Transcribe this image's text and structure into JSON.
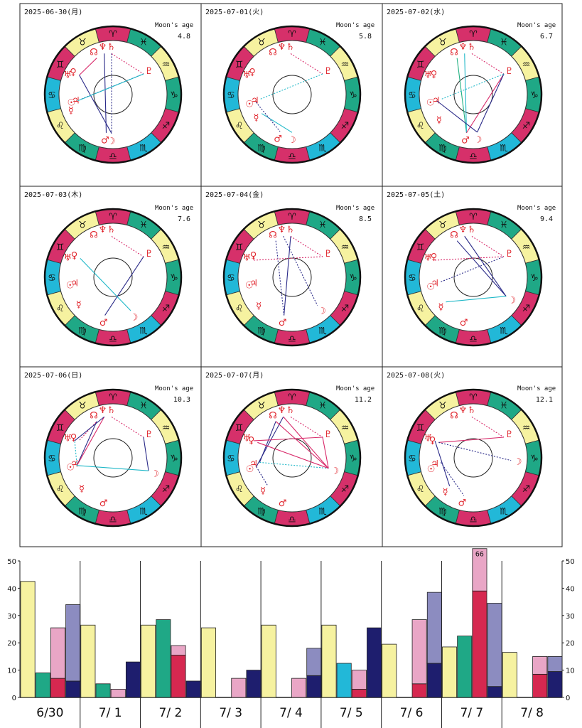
{
  "colors": {
    "yellow": "#f6f2a0",
    "teal": "#1fa886",
    "cyan": "#22b8d8",
    "magenta": "#d6306a",
    "planet_red": "#e0242c",
    "pink_light": "#e9a6c6",
    "crimson": "#d62850",
    "lavender": "#8c8cc0",
    "navy": "#1e1e6e",
    "aspect_blue": "#2a2a88",
    "aspect_pink": "#d82a6a",
    "aspect_cyan": "#20b8c8",
    "aspect_green": "#20b080"
  },
  "zodiac_glyphs": [
    "♈",
    "♉",
    "♊",
    "♋",
    "♌",
    "♍",
    "♎",
    "♏",
    "♐",
    "♑",
    "♒",
    "♓"
  ],
  "planet_glyphs": {
    "moon": "☽",
    "mercury": "☿",
    "venus": "♀",
    "mars": "♂",
    "jupiter": "♃",
    "saturn": "♄",
    "uranus": "♅",
    "neptune": "♆",
    "pluto": "♇",
    "sun": "☉",
    "node": "☊"
  },
  "moon_age_label": "Moon's age",
  "charts": [
    {
      "date": "2025-06-30(月)",
      "moon_age": "4.8"
    },
    {
      "date": "2025-07-01(火)",
      "moon_age": "5.8"
    },
    {
      "date": "2025-07-02(水)",
      "moon_age": "6.7"
    },
    {
      "date": "2025-07-03(木)",
      "moon_age": "7.6"
    },
    {
      "date": "2025-07-04(金)",
      "moon_age": "8.5"
    },
    {
      "date": "2025-07-05(土)",
      "moon_age": "9.4"
    },
    {
      "date": "2025-07-06(日)",
      "moon_age": "10.3"
    },
    {
      "date": "2025-07-07(月)",
      "moon_age": "11.2"
    },
    {
      "date": "2025-07-08(火)",
      "moon_age": "12.1"
    }
  ],
  "chart_data": {
    "type": "bar",
    "categories": [
      "6/30",
      "7/ 1",
      "7/ 2",
      "7/ 3",
      "7/ 4",
      "7/ 5",
      "7/ 6",
      "7/ 7",
      "7/ 8"
    ],
    "ylim": [
      0,
      50
    ],
    "yticks": [
      0,
      10,
      20,
      30,
      40,
      50
    ],
    "overflow_label": "66",
    "days": [
      {
        "bars": [
          {
            "kind": "simple",
            "value": 42.5,
            "color": "#f6f2a0"
          },
          {
            "kind": "simple",
            "value": 9,
            "color": "#1fa886"
          },
          {
            "kind": "stack",
            "segments": [
              {
                "value": 7,
                "color": "#d62850"
              },
              {
                "value": 18.5,
                "color": "#e9a6c6"
              }
            ]
          },
          {
            "kind": "stack",
            "segments": [
              {
                "value": 6,
                "color": "#1e1e6e"
              },
              {
                "value": 28,
                "color": "#8c8cc0"
              }
            ]
          }
        ]
      },
      {
        "bars": [
          {
            "kind": "simple",
            "value": 26.5,
            "color": "#f6f2a0"
          },
          {
            "kind": "simple",
            "value": 5,
            "color": "#1fa886"
          },
          {
            "kind": "simple",
            "value": 3,
            "color": "#e9a6c6"
          },
          {
            "kind": "simple",
            "value": 13,
            "color": "#1e1e6e"
          }
        ]
      },
      {
        "bars": [
          {
            "kind": "simple",
            "value": 26.5,
            "color": "#f6f2a0"
          },
          {
            "kind": "simple",
            "value": 28.5,
            "color": "#1fa886"
          },
          {
            "kind": "stack",
            "segments": [
              {
                "value": 15.5,
                "color": "#d62850"
              },
              {
                "value": 3.5,
                "color": "#e9a6c6"
              }
            ]
          },
          {
            "kind": "simple",
            "value": 6,
            "color": "#1e1e6e"
          }
        ]
      },
      {
        "bars": [
          {
            "kind": "simple",
            "value": 25.5,
            "color": "#f6f2a0"
          },
          {
            "kind": "empty"
          },
          {
            "kind": "simple",
            "value": 7,
            "color": "#e9a6c6"
          },
          {
            "kind": "simple",
            "value": 10,
            "color": "#1e1e6e"
          }
        ]
      },
      {
        "bars": [
          {
            "kind": "simple",
            "value": 26.5,
            "color": "#f6f2a0"
          },
          {
            "kind": "empty"
          },
          {
            "kind": "simple",
            "value": 7,
            "color": "#e9a6c6"
          },
          {
            "kind": "stack",
            "segments": [
              {
                "value": 8,
                "color": "#1e1e6e"
              },
              {
                "value": 10,
                "color": "#8c8cc0"
              }
            ]
          }
        ]
      },
      {
        "bars": [
          {
            "kind": "simple",
            "value": 26.5,
            "color": "#f6f2a0"
          },
          {
            "kind": "simple",
            "value": 12.5,
            "color": "#22b8d8"
          },
          {
            "kind": "stack",
            "segments": [
              {
                "value": 3,
                "color": "#d62850"
              },
              {
                "value": 7,
                "color": "#e9a6c6"
              }
            ]
          },
          {
            "kind": "simple",
            "value": 25.5,
            "color": "#1e1e6e"
          }
        ]
      },
      {
        "bars": [
          {
            "kind": "simple",
            "value": 19.5,
            "color": "#f6f2a0"
          },
          {
            "kind": "empty"
          },
          {
            "kind": "stack",
            "segments": [
              {
                "value": 5,
                "color": "#d62850"
              },
              {
                "value": 23.5,
                "color": "#e9a6c6"
              }
            ]
          },
          {
            "kind": "stack",
            "segments": [
              {
                "value": 12.5,
                "color": "#1e1e6e"
              },
              {
                "value": 26,
                "color": "#8c8cc0"
              }
            ]
          }
        ]
      },
      {
        "bars": [
          {
            "kind": "simple",
            "value": 18.5,
            "color": "#f6f2a0"
          },
          {
            "kind": "simple",
            "value": 22.5,
            "color": "#1fa886"
          },
          {
            "kind": "stack",
            "segments": [
              {
                "value": 39,
                "color": "#d62850"
              },
              {
                "value": 27,
                "color": "#e9a6c6"
              }
            ]
          },
          {
            "kind": "stack",
            "segments": [
              {
                "value": 4,
                "color": "#1e1e6e"
              },
              {
                "value": 30.5,
                "color": "#8c8cc0"
              }
            ]
          }
        ]
      },
      {
        "bars": [
          {
            "kind": "simple",
            "value": 16.5,
            "color": "#f6f2a0"
          },
          {
            "kind": "empty"
          },
          {
            "kind": "stack",
            "segments": [
              {
                "value": 8.5,
                "color": "#d62850"
              },
              {
                "value": 6.5,
                "color": "#e9a6c6"
              }
            ]
          },
          {
            "kind": "stack",
            "segments": [
              {
                "value": 9.5,
                "color": "#1e1e6e"
              },
              {
                "value": 5.5,
                "color": "#8c8cc0"
              }
            ]
          }
        ]
      }
    ]
  }
}
